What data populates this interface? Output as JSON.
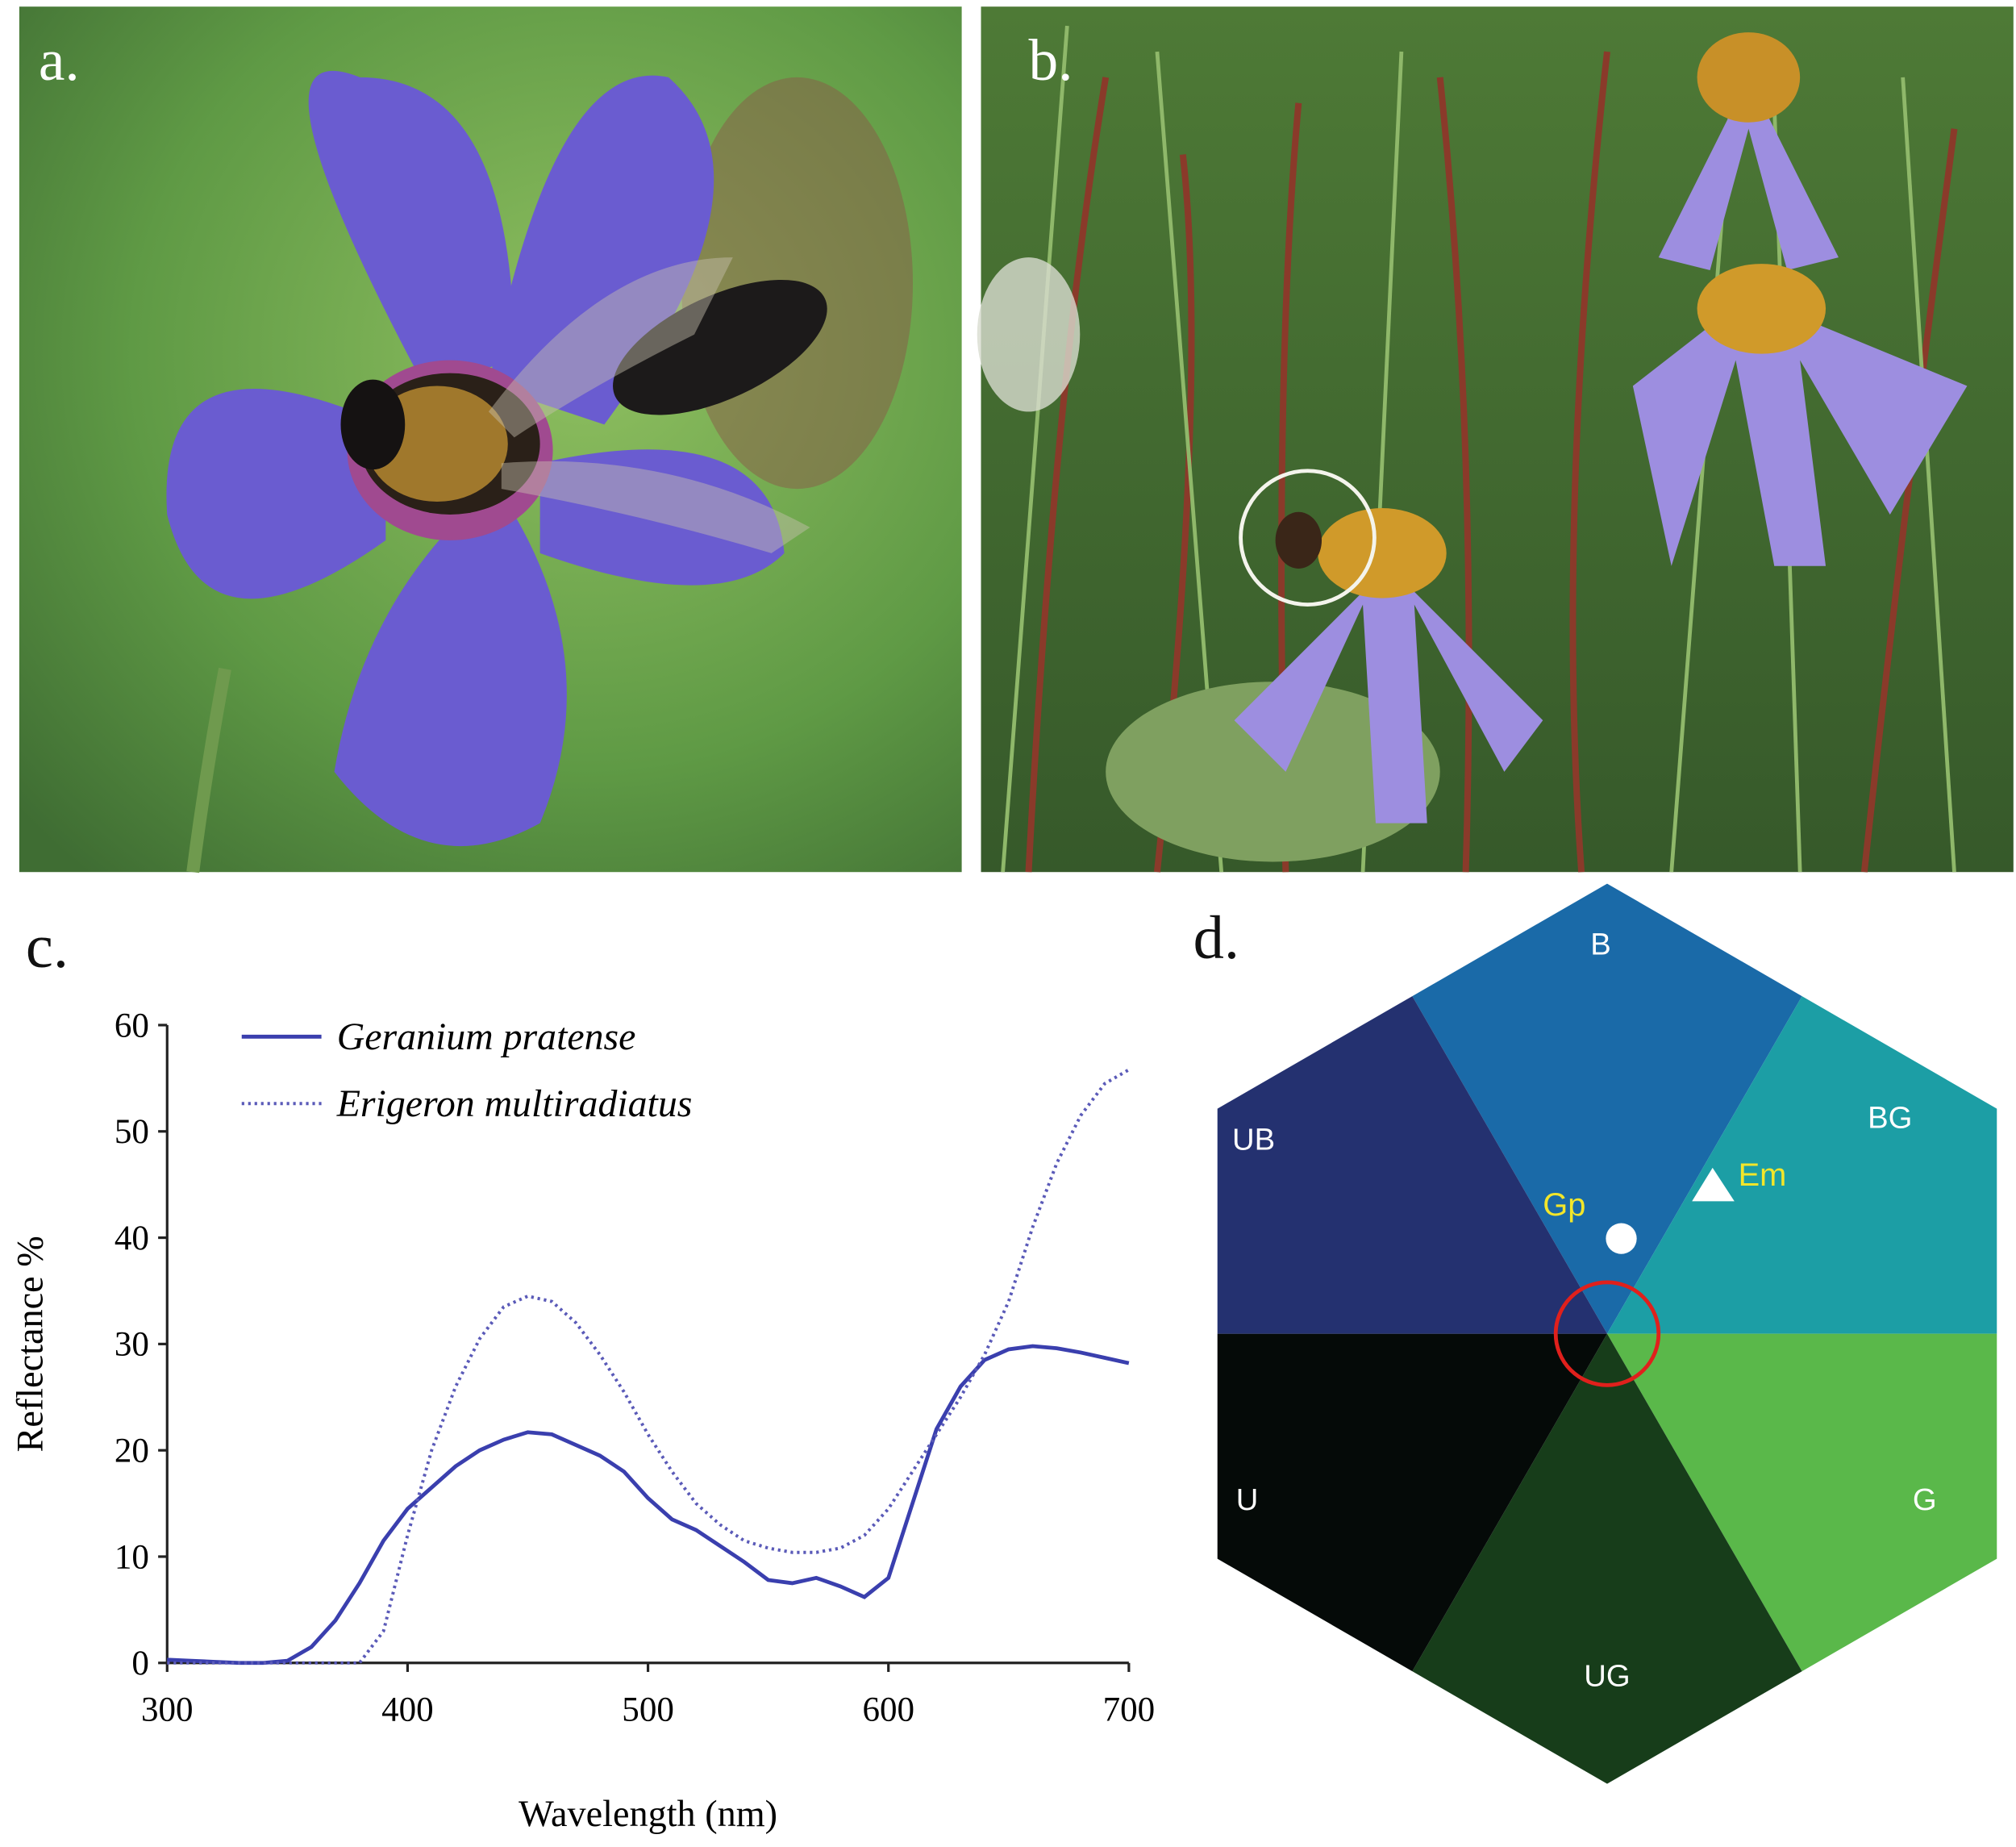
{
  "panels": {
    "a": {
      "label": "a."
    },
    "b": {
      "label": "b."
    }
  },
  "chart_data": {
    "type": "line",
    "panel_label": "c.",
    "x_label": "Wavelength (nm)",
    "y_label": "Reflectance %",
    "x": [
      300,
      310,
      320,
      330,
      340,
      350,
      360,
      370,
      380,
      390,
      400,
      410,
      420,
      430,
      440,
      450,
      460,
      470,
      480,
      490,
      500,
      510,
      520,
      530,
      540,
      550,
      560,
      570,
      580,
      590,
      600,
      610,
      620,
      630,
      640,
      650,
      660,
      670,
      680,
      690,
      700
    ],
    "series": [
      {
        "name": "Geranium pratense",
        "color": "#3a3fae",
        "style": "solid",
        "values": [
          0.3,
          0.2,
          0.1,
          0,
          0,
          0.2,
          1.5,
          4,
          7.5,
          11.5,
          14.5,
          16.5,
          18.5,
          20,
          21,
          21.7,
          21.5,
          20.5,
          19.5,
          18,
          15.5,
          13.5,
          12.5,
          11,
          9.5,
          7.8,
          7.5,
          8,
          7.2,
          6.2,
          8,
          15,
          22,
          26,
          28.5,
          29.5,
          29.8,
          29.6,
          29.2,
          28.7,
          28.2
        ]
      },
      {
        "name": "Erigeron multiradiatus",
        "color": "#5a5ab8",
        "style": "dotted",
        "values": [
          0,
          0,
          0,
          0,
          0,
          0,
          0,
          0,
          0,
          3,
          12,
          20,
          26,
          30.5,
          33.5,
          34.5,
          34,
          32,
          29,
          25.5,
          21.5,
          18,
          15,
          13,
          11.5,
          10.8,
          10.4,
          10.4,
          10.8,
          12,
          14.5,
          18,
          21.5,
          25,
          29,
          34,
          41,
          47,
          51.5,
          54.5,
          55.8
        ]
      }
    ],
    "xlim": [
      300,
      700
    ],
    "ylim": [
      0,
      60
    ],
    "xticks": [
      300,
      400,
      500,
      600,
      700
    ],
    "yticks": [
      0,
      10,
      20,
      30,
      40,
      50,
      60
    ]
  },
  "diagram": {
    "panel_label": "d.",
    "regions": [
      {
        "label": "B",
        "color": "#1a6aa8"
      },
      {
        "label": "BG",
        "color": "#1c9ea5"
      },
      {
        "label": "G",
        "color": "#5ab84a"
      },
      {
        "label": "UG",
        "color": "#173d1a"
      },
      {
        "label": "U",
        "color": "#050a08"
      },
      {
        "label": "UB",
        "color": "#243170"
      }
    ],
    "points": [
      {
        "label": "Gp"
      },
      {
        "label": "Em"
      }
    ]
  }
}
